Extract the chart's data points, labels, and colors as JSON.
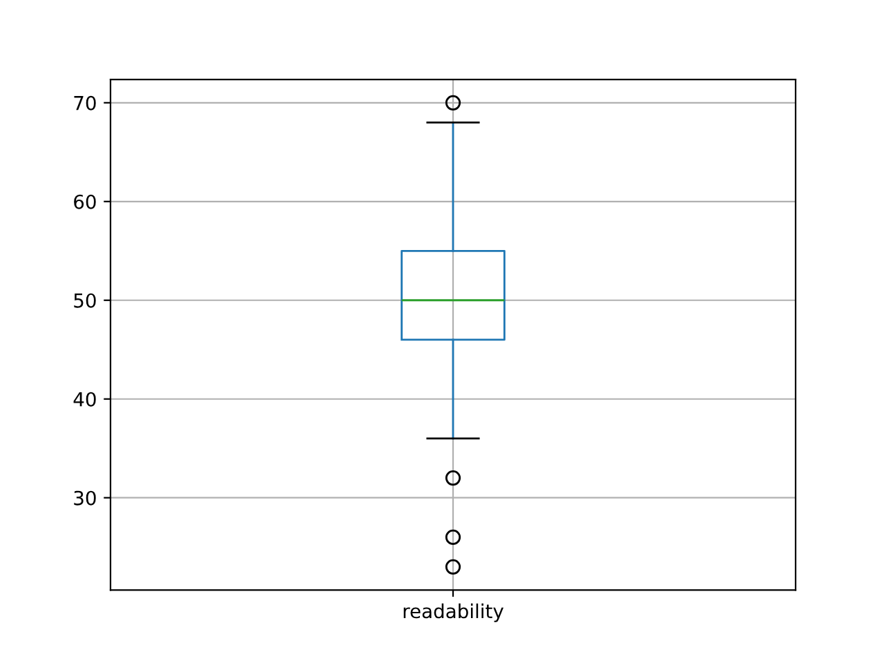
{
  "chart_data": {
    "type": "box",
    "categories": [
      "readability"
    ],
    "boxes": [
      {
        "low": 36,
        "q1": 46,
        "median": 50,
        "q3": 55,
        "high": 68,
        "outliers": [
          70,
          32,
          26,
          23
        ]
      }
    ],
    "color": "#1f77b4",
    "ylim": [
      20.65,
      72.35
    ],
    "yticks": [
      30,
      40,
      50,
      60,
      70
    ],
    "grid": true,
    "marker": "circle"
  }
}
